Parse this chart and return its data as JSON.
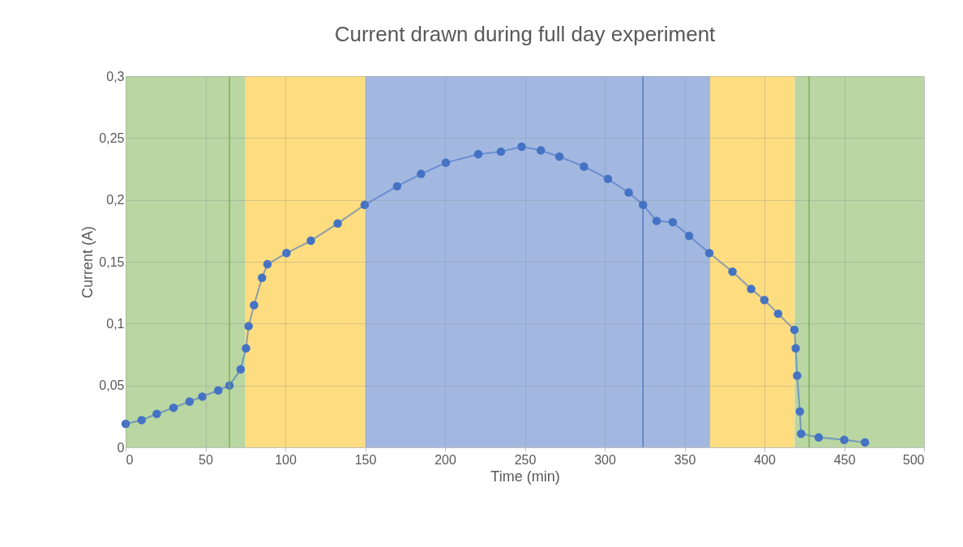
{
  "chart_data": {
    "type": "line",
    "title": "Current drawn during full day experiment",
    "xlabel": "Time (min)",
    "ylabel": "Current (A)",
    "series": [
      {
        "color": "#4472c4",
        "x": [
          0,
          10,
          19.5,
          30,
          40,
          48,
          58,
          65,
          72,
          75.4,
          77,
          80.4,
          85.4,
          88.8,
          100.7,
          116,
          132.8,
          149.7,
          170,
          185,
          200.5,
          220.8,
          235,
          248,
          260,
          271.6,
          287,
          302,
          315,
          324,
          332.5,
          342.6,
          352.8,
          365.5,
          380,
          391.7,
          400,
          408.6,
          418.8,
          419.6,
          420.5,
          422.2,
          423,
          434,
          450,
          463
        ],
        "values": [
          0.019,
          0.022,
          0.027,
          0.032,
          0.037,
          0.041,
          0.046,
          0.05,
          0.063,
          0.08,
          0.098,
          0.115,
          0.137,
          0.148,
          0.157,
          0.167,
          0.181,
          0.196,
          0.211,
          0.221,
          0.23,
          0.237,
          0.239,
          0.243,
          0.24,
          0.235,
          0.227,
          0.217,
          0.206,
          0.196,
          0.183,
          0.182,
          0.171,
          0.157,
          0.142,
          0.128,
          0.119,
          0.108,
          0.095,
          0.08,
          0.058,
          0.029,
          0.011,
          0.008,
          0.006,
          0.004
        ]
      }
    ],
    "xlim": [
      0,
      500
    ],
    "xticks": [
      0,
      50,
      100,
      150,
      200,
      250,
      300,
      350,
      400,
      450,
      500
    ],
    "ylim": [
      0,
      0.3
    ],
    "yticks": [
      0,
      {
        "value": 0.05,
        "label": "0,05"
      },
      {
        "value": 0.1,
        "label": "0,1"
      },
      {
        "value": 0.15,
        "label": "0,15"
      },
      {
        "value": 0.2,
        "label": "0,2"
      },
      {
        "value": 0.25,
        "label": "0,25"
      },
      {
        "value": 0.3,
        "label": "0,3"
      }
    ],
    "bands": [
      {
        "axis": "x",
        "from": 0,
        "to": 75,
        "color": "#b9d6a3"
      },
      {
        "axis": "x",
        "from": 75,
        "to": 150,
        "color": "#fddd7f"
      },
      {
        "axis": "x",
        "from": 150,
        "to": 366,
        "color": "#a2b8e0"
      },
      {
        "axis": "x",
        "from": 366,
        "to": 419,
        "color": "#fddd7f"
      },
      {
        "axis": "x",
        "from": 419,
        "to": 500,
        "color": "#b9d6a3"
      }
    ],
    "ref_lines": [
      {
        "axis": "x",
        "value": 65,
        "color": "#70ad47"
      },
      {
        "axis": "x",
        "value": 324,
        "color": "#4472c4"
      },
      {
        "axis": "x",
        "value": 428,
        "color": "#70ad47"
      }
    ],
    "grid": true,
    "marker": "circle",
    "line_style": "solid"
  }
}
